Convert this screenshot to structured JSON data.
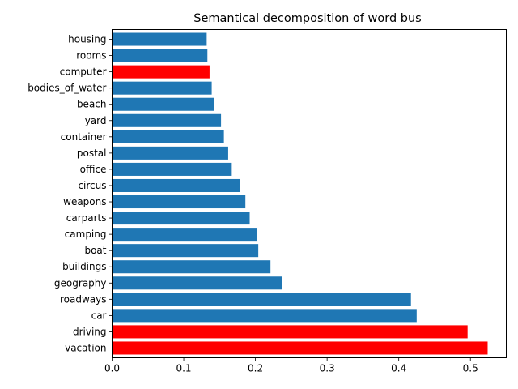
{
  "chart_data": {
    "type": "bar",
    "orientation": "horizontal",
    "title": "Semantical decomposition of word bus",
    "xlabel": "",
    "ylabel": "",
    "xlim": [
      0,
      0.55
    ],
    "xticks": [
      0.0,
      0.1,
      0.2,
      0.3,
      0.4,
      0.5
    ],
    "xtick_labels": [
      "0.0",
      "0.1",
      "0.2",
      "0.3",
      "0.4",
      "0.5"
    ],
    "grid": false,
    "legend": "none",
    "colors": {
      "default": "#1f77b4",
      "highlight": "#ff0000"
    },
    "categories": [
      "vacation",
      "driving",
      "car",
      "roadways",
      "geography",
      "buildings",
      "boat",
      "camping",
      "carparts",
      "weapons",
      "circus",
      "office",
      "postal",
      "container",
      "yard",
      "beach",
      "bodies_of_water",
      "computer",
      "rooms",
      "housing"
    ],
    "values": [
      0.524,
      0.496,
      0.425,
      0.417,
      0.237,
      0.221,
      0.204,
      0.202,
      0.192,
      0.186,
      0.179,
      0.167,
      0.162,
      0.156,
      0.152,
      0.142,
      0.139,
      0.136,
      0.133,
      0.132
    ],
    "highlighted": [
      "vacation",
      "driving",
      "computer"
    ]
  }
}
